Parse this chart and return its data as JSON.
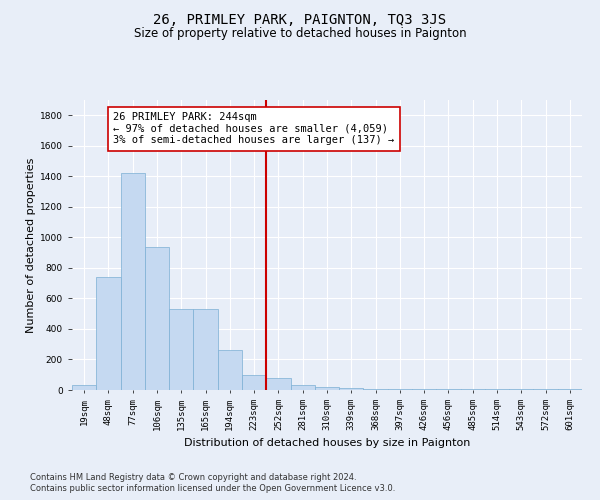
{
  "title": "26, PRIMLEY PARK, PAIGNTON, TQ3 3JS",
  "subtitle": "Size of property relative to detached houses in Paignton",
  "xlabel": "Distribution of detached houses by size in Paignton",
  "ylabel": "Number of detached properties",
  "categories": [
    "19sqm",
    "48sqm",
    "77sqm",
    "106sqm",
    "135sqm",
    "165sqm",
    "194sqm",
    "223sqm",
    "252sqm",
    "281sqm",
    "310sqm",
    "339sqm",
    "368sqm",
    "397sqm",
    "426sqm",
    "456sqm",
    "485sqm",
    "514sqm",
    "543sqm",
    "572sqm",
    "601sqm"
  ],
  "values": [
    30,
    740,
    1420,
    940,
    530,
    530,
    260,
    100,
    80,
    35,
    20,
    10,
    5,
    5,
    5,
    5,
    5,
    5,
    5,
    5,
    5
  ],
  "bar_color": "#c5d9f1",
  "bar_edge_color": "#7bafd4",
  "property_label": "26 PRIMLEY PARK: 244sqm",
  "annotation_line1": "← 97% of detached houses are smaller (4,059)",
  "annotation_line2": "3% of semi-detached houses are larger (137) →",
  "vline_color": "#cc0000",
  "annotation_box_facecolor": "#ffffff",
  "annotation_box_edgecolor": "#cc0000",
  "ylim": [
    0,
    1900
  ],
  "yticks": [
    0,
    200,
    400,
    600,
    800,
    1000,
    1200,
    1400,
    1600,
    1800
  ],
  "footnote1": "Contains HM Land Registry data © Crown copyright and database right 2024.",
  "footnote2": "Contains public sector information licensed under the Open Government Licence v3.0.",
  "bg_color": "#e8eef8",
  "title_fontsize": 10,
  "subtitle_fontsize": 8.5,
  "axis_label_fontsize": 8,
  "tick_fontsize": 6.5,
  "footnote_fontsize": 6,
  "annotation_fontsize": 7.5
}
